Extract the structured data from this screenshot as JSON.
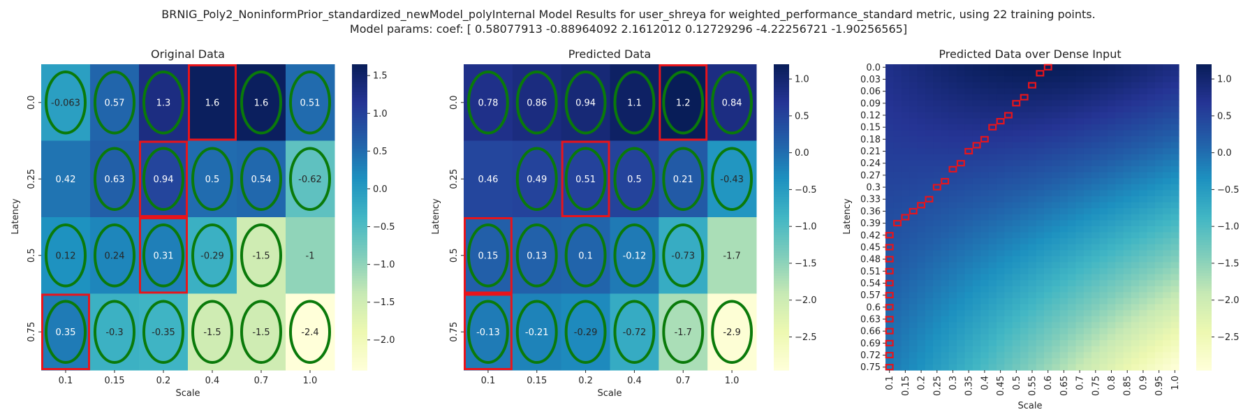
{
  "figure": {
    "title_line1": "BRNIG_Poly2_NoninformPrior_standardized_newModel_polyInternal Model Results for user_shreya for weighted_performance_standard metric, using 22 training points.",
    "title_line2": "Model params: coef: [ 0.58077913 -0.88964092  2.1612012   0.12729296 -4.22256721 -1.90256565]"
  },
  "colors": {
    "colormap": [
      "#ffffd9",
      "#edf8b1",
      "#c7e9b4",
      "#7fcdbb",
      "#41b6c4",
      "#1d91c0",
      "#225ea8",
      "#253494",
      "#081d58"
    ],
    "ellipse": "#0a7a0a",
    "highlight": "#e8141b"
  },
  "chart_data": [
    {
      "type": "heatmap",
      "title": "Original Data",
      "xlabel": "Scale",
      "ylabel": "Latency",
      "x_categories": [
        "0.1",
        "0.15",
        "0.2",
        "0.4",
        "0.7",
        "1.0"
      ],
      "y_categories": [
        "0.0",
        "0.25",
        "0.5",
        "0.75"
      ],
      "values": [
        [
          -0.063,
          0.57,
          1.3,
          1.6,
          1.6,
          0.51
        ],
        [
          0.42,
          0.63,
          0.94,
          0.5,
          0.54,
          -0.62
        ],
        [
          0.12,
          0.24,
          0.31,
          -0.29,
          -1.5,
          -1.0
        ],
        [
          0.35,
          -0.3,
          -0.35,
          -1.5,
          -1.5,
          -2.4
        ]
      ],
      "labels": [
        [
          "-0.063",
          "0.57",
          "1.3",
          "1.6",
          "1.6",
          "0.51"
        ],
        [
          "0.42",
          "0.63",
          "0.94",
          "0.5",
          "0.54",
          "-0.62"
        ],
        [
          "0.12",
          "0.24",
          "0.31",
          "-0.29",
          "-1.5",
          "-1"
        ],
        [
          "0.35",
          "-0.3",
          "-0.35",
          "-1.5",
          "-1.5",
          "-2.4"
        ]
      ],
      "vmin": -2.4,
      "vmax": 1.65,
      "colorbar_ticks": [
        1.5,
        1.0,
        0.5,
        0.0,
        -0.5,
        -1.0,
        -1.5,
        -2.0
      ],
      "colorbar_tick_labels": [
        "1.5",
        "1.0",
        "0.5",
        "0.0",
        "−0.5",
        "−1.0",
        "−1.5",
        "−2.0"
      ],
      "ellipses": [
        [
          1,
          1,
          1,
          0,
          1,
          1
        ],
        [
          0,
          1,
          1,
          1,
          1,
          1
        ],
        [
          1,
          1,
          1,
          1,
          1,
          0
        ],
        [
          1,
          1,
          1,
          1,
          1,
          1
        ]
      ],
      "highlights": [
        [
          0,
          3
        ],
        [
          1,
          2
        ],
        [
          2,
          2
        ],
        [
          3,
          0
        ]
      ]
    },
    {
      "type": "heatmap",
      "title": "Predicted Data",
      "xlabel": "Scale",
      "ylabel": "Latency",
      "x_categories": [
        "0.1",
        "0.15",
        "0.2",
        "0.4",
        "0.7",
        "1.0"
      ],
      "y_categories": [
        "0.0",
        "0.25",
        "0.5",
        "0.75"
      ],
      "values": [
        [
          0.78,
          0.86,
          0.94,
          1.1,
          1.2,
          0.84
        ],
        [
          0.46,
          0.49,
          0.51,
          0.5,
          0.21,
          -0.43
        ],
        [
          0.15,
          0.13,
          0.1,
          -0.12,
          -0.73,
          -1.7
        ],
        [
          -0.13,
          -0.21,
          -0.29,
          -0.72,
          -1.7,
          -2.9
        ]
      ],
      "labels": [
        [
          "0.78",
          "0.86",
          "0.94",
          "1.1",
          "1.2",
          "0.84"
        ],
        [
          "0.46",
          "0.49",
          "0.51",
          "0.5",
          "0.21",
          "-0.43"
        ],
        [
          "0.15",
          "0.13",
          "0.1",
          "-0.12",
          "-0.73",
          "-1.7"
        ],
        [
          "-0.13",
          "-0.21",
          "-0.29",
          "-0.72",
          "-1.7",
          "-2.9"
        ]
      ],
      "vmin": -2.95,
      "vmax": 1.2,
      "colorbar_ticks": [
        1.0,
        0.5,
        0.0,
        -0.5,
        -1.0,
        -1.5,
        -2.0,
        -2.5
      ],
      "colorbar_tick_labels": [
        "1.0",
        "0.5",
        "0.0",
        "−0.5",
        "−1.0",
        "−1.5",
        "−2.0",
        "−2.5"
      ],
      "ellipses": [
        [
          1,
          1,
          1,
          1,
          1,
          1
        ],
        [
          0,
          1,
          1,
          1,
          1,
          1
        ],
        [
          1,
          1,
          1,
          1,
          1,
          0
        ],
        [
          1,
          1,
          1,
          1,
          1,
          1
        ]
      ],
      "highlights": [
        [
          0,
          4
        ],
        [
          1,
          2
        ],
        [
          2,
          0
        ],
        [
          3,
          0
        ]
      ]
    },
    {
      "type": "heatmap",
      "title": "Predicted Data over Dense Input",
      "xlabel": "Scale",
      "ylabel": "Latency",
      "x_tick_labels": [
        "0.1",
        "0.15",
        "0.2",
        "0.25",
        "0.3",
        "0.35",
        "0.4",
        "0.45",
        "0.5",
        "0.55",
        "0.6",
        "0.65",
        "0.7",
        "0.75",
        "0.8",
        "0.85",
        "0.9",
        "0.95",
        "1.0"
      ],
      "y_tick_labels": [
        "0.0",
        "0.03",
        "0.06",
        "0.09",
        "0.12",
        "0.15",
        "0.18",
        "0.21",
        "0.24",
        "0.27",
        "0.3",
        "0.33",
        "0.36",
        "0.39",
        "0.42",
        "0.45",
        "0.48",
        "0.51",
        "0.54",
        "0.57",
        "0.6",
        "0.63",
        "0.66",
        "0.69",
        "0.72",
        "0.75"
      ],
      "x_range": [
        0.1,
        1.0
      ],
      "y_range": [
        0.0,
        0.75
      ],
      "grid_cols": 37,
      "grid_rows": 51,
      "corner_values": {
        "top_left": 0.78,
        "top_right": 0.84,
        "bottom_left": -0.13,
        "bottom_right": -2.9
      },
      "vmin": -2.95,
      "vmax": 1.2,
      "colorbar_ticks": [
        1.0,
        0.5,
        0.0,
        -0.5,
        -1.0,
        -1.5,
        -2.0,
        -2.5
      ],
      "colorbar_tick_labels": [
        "1.0",
        "0.5",
        "0.0",
        "−0.5",
        "−1.0",
        "−1.5",
        "−2.0",
        "−2.5"
      ],
      "highlight_path": [
        [
          0.1,
          0.75
        ],
        [
          0.1,
          0.72
        ],
        [
          0.1,
          0.69
        ],
        [
          0.1,
          0.66
        ],
        [
          0.1,
          0.63
        ],
        [
          0.1,
          0.6
        ],
        [
          0.1,
          0.57
        ],
        [
          0.1,
          0.54
        ],
        [
          0.1,
          0.51
        ],
        [
          0.1,
          0.48
        ],
        [
          0.1,
          0.45
        ],
        [
          0.1,
          0.42
        ],
        [
          0.125,
          0.39
        ],
        [
          0.15,
          0.375
        ],
        [
          0.175,
          0.36
        ],
        [
          0.2,
          0.345
        ],
        [
          0.225,
          0.33
        ],
        [
          0.25,
          0.3
        ],
        [
          0.275,
          0.285
        ],
        [
          0.3,
          0.255
        ],
        [
          0.325,
          0.24
        ],
        [
          0.35,
          0.21
        ],
        [
          0.375,
          0.195
        ],
        [
          0.4,
          0.18
        ],
        [
          0.425,
          0.15
        ],
        [
          0.45,
          0.135
        ],
        [
          0.475,
          0.12
        ],
        [
          0.5,
          0.09
        ],
        [
          0.525,
          0.075
        ],
        [
          0.55,
          0.045
        ],
        [
          0.575,
          0.015
        ],
        [
          0.6,
          0.0
        ]
      ]
    }
  ]
}
